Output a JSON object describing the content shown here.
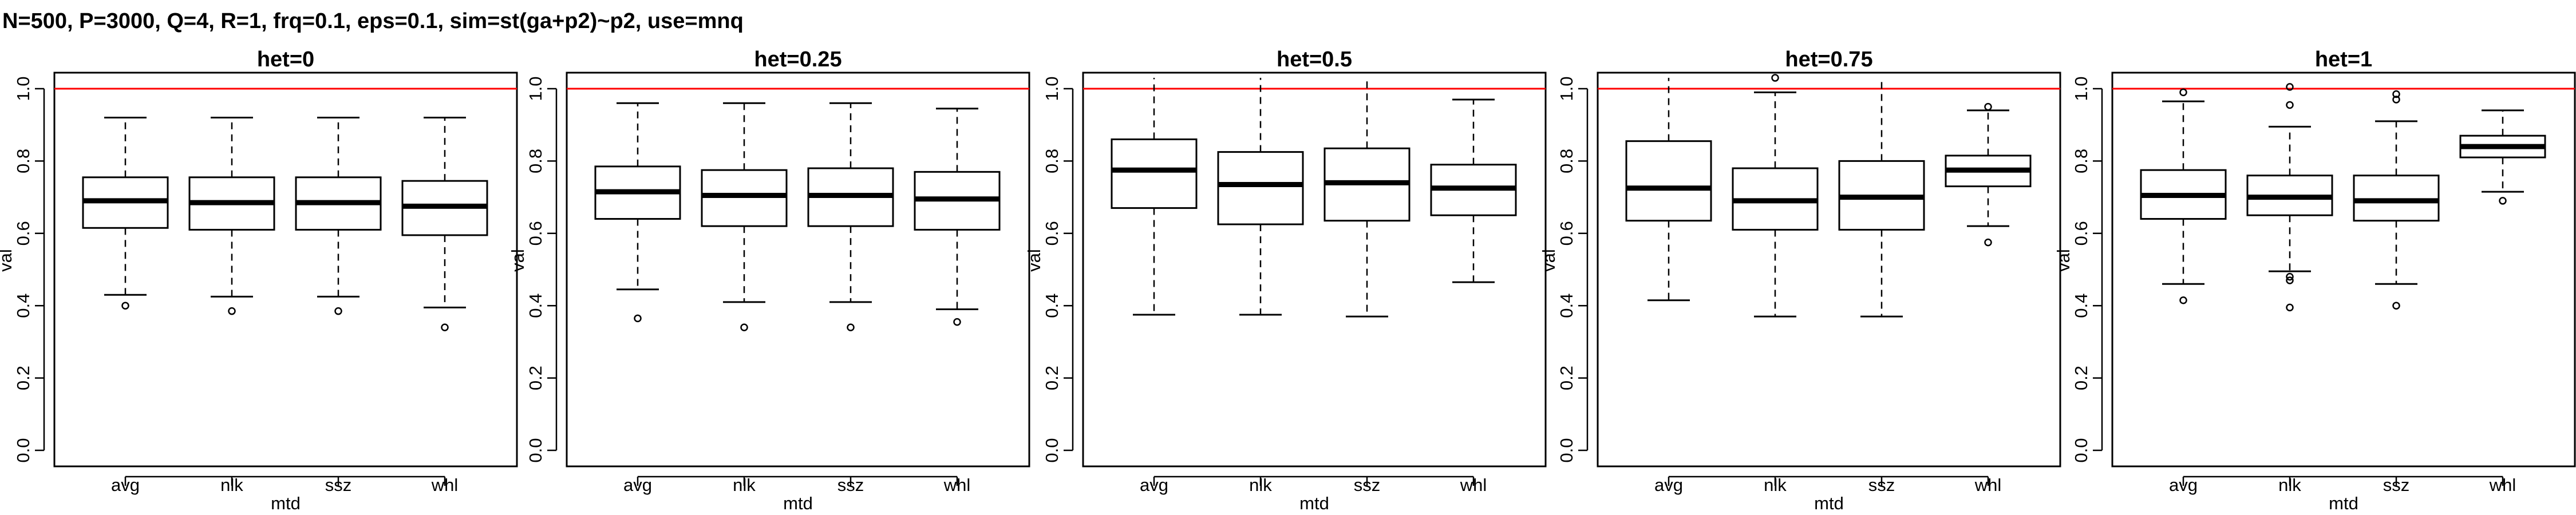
{
  "title": "N=500, P=3000, Q=4, R=1, frq=0.1, eps=0.1, sim=st(ga+p2)~p2, use=mnq",
  "chart_data": {
    "type": "boxplot",
    "xlabel": "mtd",
    "ylabel": "val",
    "ylim": [
      0,
      1
    ],
    "yticks": [
      "0.0",
      "0.2",
      "0.4",
      "0.6",
      "0.8",
      "1.0"
    ],
    "reference_line": {
      "y": 1.0,
      "color": "#ff0000"
    },
    "categories": [
      "avg",
      "nlk",
      "ssz",
      "whl"
    ],
    "panels": [
      {
        "title": "het=0",
        "boxes": [
          {
            "whislo": 0.43,
            "q1": 0.615,
            "med": 0.69,
            "q3": 0.755,
            "whishi": 0.92,
            "fliers": [
              0.4
            ]
          },
          {
            "whislo": 0.425,
            "q1": 0.61,
            "med": 0.685,
            "q3": 0.755,
            "whishi": 0.92,
            "fliers": [
              0.385
            ]
          },
          {
            "whislo": 0.425,
            "q1": 0.61,
            "med": 0.685,
            "q3": 0.755,
            "whishi": 0.92,
            "fliers": [
              0.385
            ]
          },
          {
            "whislo": 0.395,
            "q1": 0.595,
            "med": 0.675,
            "q3": 0.745,
            "whishi": 0.92,
            "fliers": [
              0.34
            ]
          }
        ]
      },
      {
        "title": "het=0.25",
        "boxes": [
          {
            "whislo": 0.445,
            "q1": 0.64,
            "med": 0.715,
            "q3": 0.785,
            "whishi": 0.96,
            "fliers": [
              0.365
            ]
          },
          {
            "whislo": 0.41,
            "q1": 0.62,
            "med": 0.705,
            "q3": 0.775,
            "whishi": 0.96,
            "fliers": [
              0.34
            ]
          },
          {
            "whislo": 0.41,
            "q1": 0.62,
            "med": 0.705,
            "q3": 0.78,
            "whishi": 0.96,
            "fliers": [
              0.34
            ]
          },
          {
            "whislo": 0.39,
            "q1": 0.61,
            "med": 0.695,
            "q3": 0.77,
            "whishi": 0.945,
            "fliers": [
              0.355
            ]
          }
        ]
      },
      {
        "title": "het=0.5",
        "boxes": [
          {
            "whislo": 0.375,
            "q1": 0.67,
            "med": 0.775,
            "q3": 0.86,
            "whishi": 1.03,
            "fliers": []
          },
          {
            "whislo": 0.375,
            "q1": 0.625,
            "med": 0.735,
            "q3": 0.825,
            "whishi": 1.03,
            "fliers": []
          },
          {
            "whislo": 0.37,
            "q1": 0.635,
            "med": 0.74,
            "q3": 0.835,
            "whishi": 1.03,
            "fliers": []
          },
          {
            "whislo": 0.465,
            "q1": 0.65,
            "med": 0.725,
            "q3": 0.79,
            "whishi": 0.97,
            "fliers": []
          }
        ]
      },
      {
        "title": "het=0.75",
        "boxes": [
          {
            "whislo": 0.415,
            "q1": 0.635,
            "med": 0.725,
            "q3": 0.855,
            "whishi": 1.03,
            "fliers": []
          },
          {
            "whislo": 0.37,
            "q1": 0.61,
            "med": 0.69,
            "q3": 0.78,
            "whishi": 0.99,
            "fliers": [
              1.03
            ]
          },
          {
            "whislo": 0.37,
            "q1": 0.61,
            "med": 0.7,
            "q3": 0.8,
            "whishi": 1.03,
            "fliers": []
          },
          {
            "whislo": 0.62,
            "q1": 0.73,
            "med": 0.775,
            "q3": 0.815,
            "whishi": 0.94,
            "fliers": [
              0.95,
              0.575
            ]
          }
        ]
      },
      {
        "title": "het=1",
        "boxes": [
          {
            "whislo": 0.46,
            "q1": 0.64,
            "med": 0.705,
            "q3": 0.775,
            "whishi": 0.965,
            "fliers": [
              0.99,
              0.415
            ]
          },
          {
            "whislo": 0.495,
            "q1": 0.65,
            "med": 0.7,
            "q3": 0.76,
            "whishi": 0.895,
            "fliers": [
              1.005,
              0.955,
              0.48,
              0.47,
              0.395
            ]
          },
          {
            "whislo": 0.46,
            "q1": 0.635,
            "med": 0.69,
            "q3": 0.76,
            "whishi": 0.91,
            "fliers": [
              0.985,
              0.97,
              0.4
            ]
          },
          {
            "whislo": 0.715,
            "q1": 0.81,
            "med": 0.84,
            "q3": 0.87,
            "whishi": 0.94,
            "fliers": [
              0.69
            ]
          }
        ]
      }
    ]
  }
}
